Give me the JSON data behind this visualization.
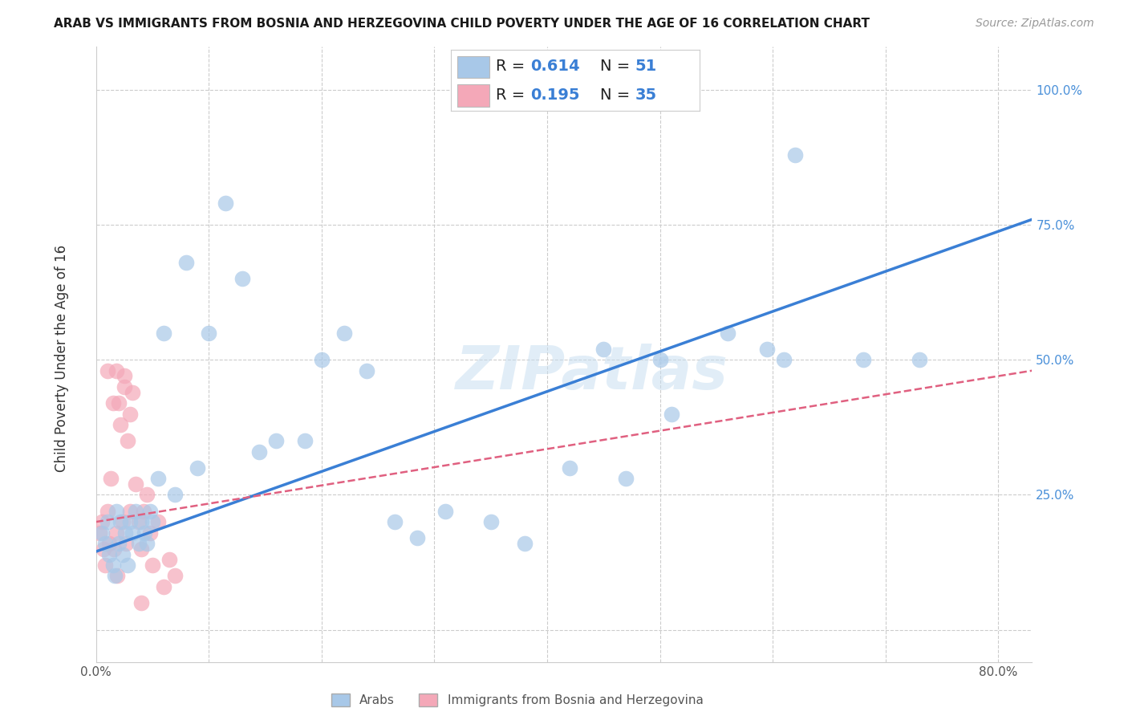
{
  "title": "ARAB VS IMMIGRANTS FROM BOSNIA AND HERZEGOVINA CHILD POVERTY UNDER THE AGE OF 16 CORRELATION CHART",
  "source": "Source: ZipAtlas.com",
  "ylabel": "Child Poverty Under the Age of 16",
  "xlim": [
    0.0,
    0.83
  ],
  "ylim": [
    -0.06,
    1.08
  ],
  "R_arab": 0.614,
  "N_arab": 51,
  "R_bosnia": 0.195,
  "N_bosnia": 35,
  "arab_color": "#a8c8e8",
  "bosnia_color": "#f4a8b8",
  "arab_line_color": "#3a7fd5",
  "bosnia_line_color": "#e06080",
  "watermark": "ZIPatlas",
  "legend_label_arab": "Arabs",
  "legend_label_bosnia": "Immigrants from Bosnia and Herzegovina",
  "arab_x": [
    0.005,
    0.008,
    0.01,
    0.012,
    0.015,
    0.017,
    0.018,
    0.02,
    0.022,
    0.024,
    0.026,
    0.028,
    0.03,
    0.032,
    0.035,
    0.038,
    0.04,
    0.043,
    0.045,
    0.048,
    0.05,
    0.055,
    0.06,
    0.07,
    0.08,
    0.09,
    0.1,
    0.115,
    0.13,
    0.145,
    0.16,
    0.185,
    0.2,
    0.22,
    0.24,
    0.265,
    0.285,
    0.31,
    0.35,
    0.38,
    0.42,
    0.45,
    0.47,
    0.5,
    0.51,
    0.56,
    0.595,
    0.61,
    0.62,
    0.68,
    0.73
  ],
  "arab_y": [
    0.18,
    0.16,
    0.2,
    0.14,
    0.12,
    0.1,
    0.22,
    0.16,
    0.2,
    0.14,
    0.18,
    0.12,
    0.2,
    0.18,
    0.22,
    0.16,
    0.2,
    0.18,
    0.16,
    0.22,
    0.2,
    0.28,
    0.55,
    0.25,
    0.68,
    0.3,
    0.55,
    0.79,
    0.65,
    0.33,
    0.35,
    0.35,
    0.5,
    0.55,
    0.48,
    0.2,
    0.17,
    0.22,
    0.2,
    0.16,
    0.3,
    0.52,
    0.28,
    0.5,
    0.4,
    0.55,
    0.52,
    0.5,
    0.88,
    0.5,
    0.5
  ],
  "bosnia_x": [
    0.003,
    0.005,
    0.007,
    0.008,
    0.01,
    0.012,
    0.013,
    0.015,
    0.016,
    0.018,
    0.019,
    0.02,
    0.022,
    0.024,
    0.025,
    0.027,
    0.028,
    0.03,
    0.032,
    0.035,
    0.038,
    0.04,
    0.042,
    0.045,
    0.048,
    0.05,
    0.055,
    0.06,
    0.065,
    0.07,
    0.04,
    0.018,
    0.025,
    0.03,
    0.01
  ],
  "bosnia_y": [
    0.18,
    0.2,
    0.15,
    0.12,
    0.22,
    0.16,
    0.28,
    0.42,
    0.15,
    0.18,
    0.1,
    0.42,
    0.38,
    0.2,
    0.47,
    0.16,
    0.35,
    0.22,
    0.44,
    0.27,
    0.2,
    0.15,
    0.22,
    0.25,
    0.18,
    0.12,
    0.2,
    0.08,
    0.13,
    0.1,
    0.05,
    0.48,
    0.45,
    0.4,
    0.48
  ],
  "arab_line_x0": 0.0,
  "arab_line_y0": 0.145,
  "arab_line_x1": 0.83,
  "arab_line_y1": 0.76,
  "bosnia_line_x0": 0.0,
  "bosnia_line_y0": 0.2,
  "bosnia_line_x1": 0.83,
  "bosnia_line_y1": 0.48
}
